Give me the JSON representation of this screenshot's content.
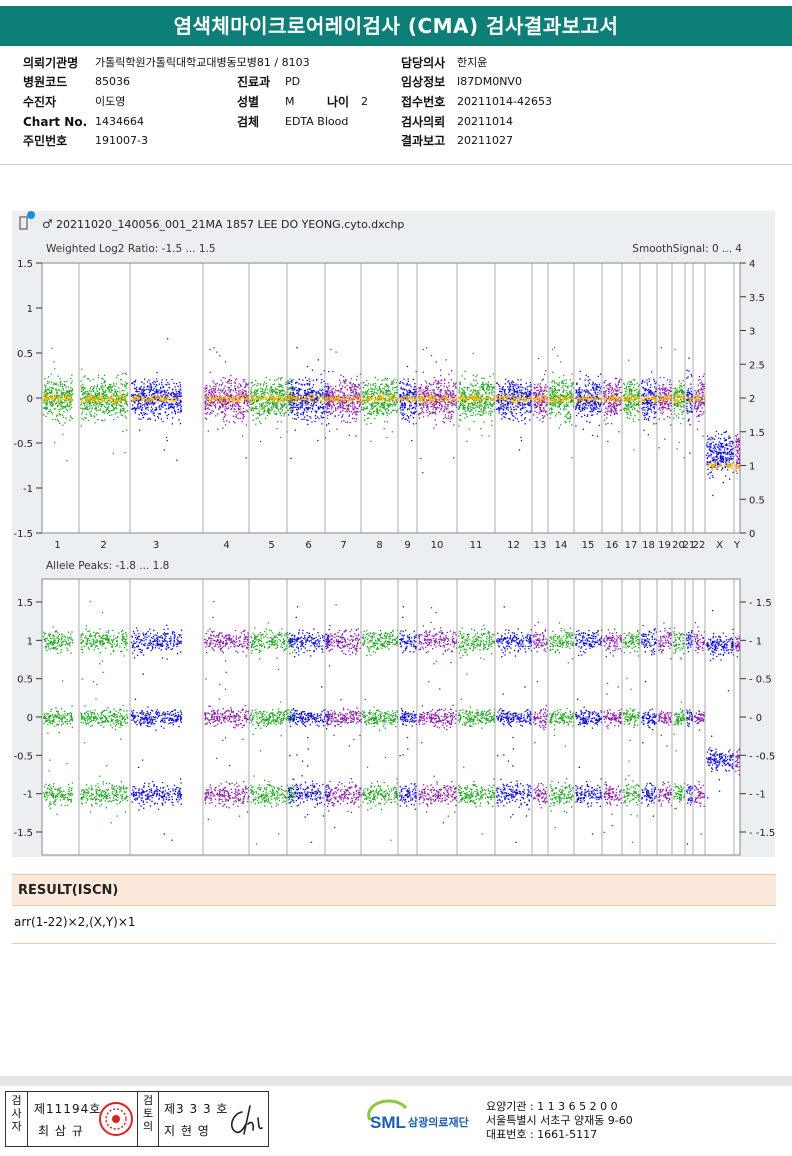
{
  "report": {
    "title": "염색체마이크로어레이검사 (CMA) 검사결과보고서"
  },
  "patient": {
    "col1": [
      {
        "label": "의뢰기관명",
        "value": "가톨릭학원가톨릭대학교대병동모병81 / 8103"
      },
      {
        "label": "병원코드",
        "value": "85036"
      },
      {
        "label": "수진자",
        "value": "이도영"
      },
      {
        "label": "Chart No.",
        "value": "1434664"
      },
      {
        "label": "주민번호",
        "value": "191007-3"
      }
    ],
    "col2": [
      {
        "label": "진료과",
        "value": "PD"
      },
      {
        "label": "성별",
        "value": "M"
      },
      {
        "label": "검체",
        "value": "EDTA Blood"
      }
    ],
    "age": {
      "label": "나이",
      "value": "2"
    },
    "col3": [
      {
        "label": "담당의사",
        "value": "한지윤"
      },
      {
        "label": "임상정보",
        "value": "I87DM0NV0"
      },
      {
        "label": "접수번호",
        "value": "20211014-42653"
      },
      {
        "label": "검사의뢰",
        "value": "20211014"
      },
      {
        "label": "결과보고",
        "value": "20211027"
      }
    ]
  },
  "chart_data": [
    {
      "type": "scatter",
      "file_title": "20211020_140056_001_21MA 1857 LEE DO YEONG.cyto.dxchp",
      "title": "Weighted Log2 Ratio: -1.5 ... 1.5",
      "right_title": "SmoothSignal: 0 ... 4",
      "ylim": [
        -1.5,
        1.5
      ],
      "y2lim": [
        0,
        4
      ],
      "yticks": [
        "1.5",
        "1",
        "0.5",
        "0",
        "-0.5",
        "-1",
        "-1.5"
      ],
      "y2ticks": [
        "4",
        "3.5",
        "3",
        "2.5",
        "2",
        "1.5",
        "1",
        "0.5",
        "0"
      ],
      "categories": [
        "1",
        "2",
        "3",
        "4",
        "5",
        "6",
        "7",
        "8",
        "9",
        "10",
        "11",
        "12",
        "13",
        "14",
        "15",
        "16",
        "17",
        "18",
        "19",
        "20",
        "21",
        "22",
        "X",
        "Y"
      ],
      "series": [
        {
          "name": "",
          "values": [
            0,
            0,
            0,
            0,
            0,
            0,
            0,
            0,
            0,
            0,
            0,
            0,
            0,
            0,
            0,
            0,
            0,
            0,
            0,
            0,
            0,
            0,
            -0.6,
            -0.6
          ]
        }
      ],
      "smooth_signal": [
        2,
        2,
        2,
        2,
        2,
        2,
        2,
        2,
        2,
        2,
        2,
        2,
        2,
        2,
        2,
        2,
        2,
        2,
        2,
        2,
        2,
        2,
        1,
        1
      ]
    },
    {
      "type": "scatter",
      "title": "Allele Peaks: -1.8 ... 1.8",
      "ylim": [
        -1.8,
        1.8
      ],
      "yticks": [
        "1.5",
        "1",
        "0.5",
        "0",
        "-0.5",
        "-1",
        "-1.5"
      ],
      "categories": [
        "1",
        "2",
        "3",
        "4",
        "5",
        "6",
        "7",
        "8",
        "9",
        "10",
        "11",
        "12",
        "13",
        "14",
        "15",
        "16",
        "17",
        "18",
        "19",
        "20",
        "21",
        "22",
        "X",
        "Y"
      ],
      "peaks_autosome": [
        1,
        0,
        -1
      ],
      "peaks_x": [
        0.95,
        -0.55
      ]
    }
  ],
  "colors": {
    "green": "#1aa51a",
    "blue": "#0a0ad2",
    "purple": "#8a1aa8",
    "smooth": "#f5b400",
    "teal": "#0e7f76"
  },
  "result": {
    "heading": "RESULT(ISCN)",
    "text": "arr(1-22)×2,(X,Y)×1"
  },
  "footer": {
    "vlabel_left": "검사자",
    "vlabel_mid": "검토의",
    "tester_no": "제11194호",
    "tester_name": "최 삼 규",
    "reviewer_no": "제3 3 3 호",
    "reviewer_name": "지 현 영",
    "lab_abbr": "SML",
    "lab_name": "삼광의료재단",
    "lab_code": "요양기관 : 1 1 3 6 5 2 0 0",
    "lab_address": "서울특별시 서초구 양재동 9-60",
    "lab_phone": "대표번호 : 1661-5117"
  }
}
